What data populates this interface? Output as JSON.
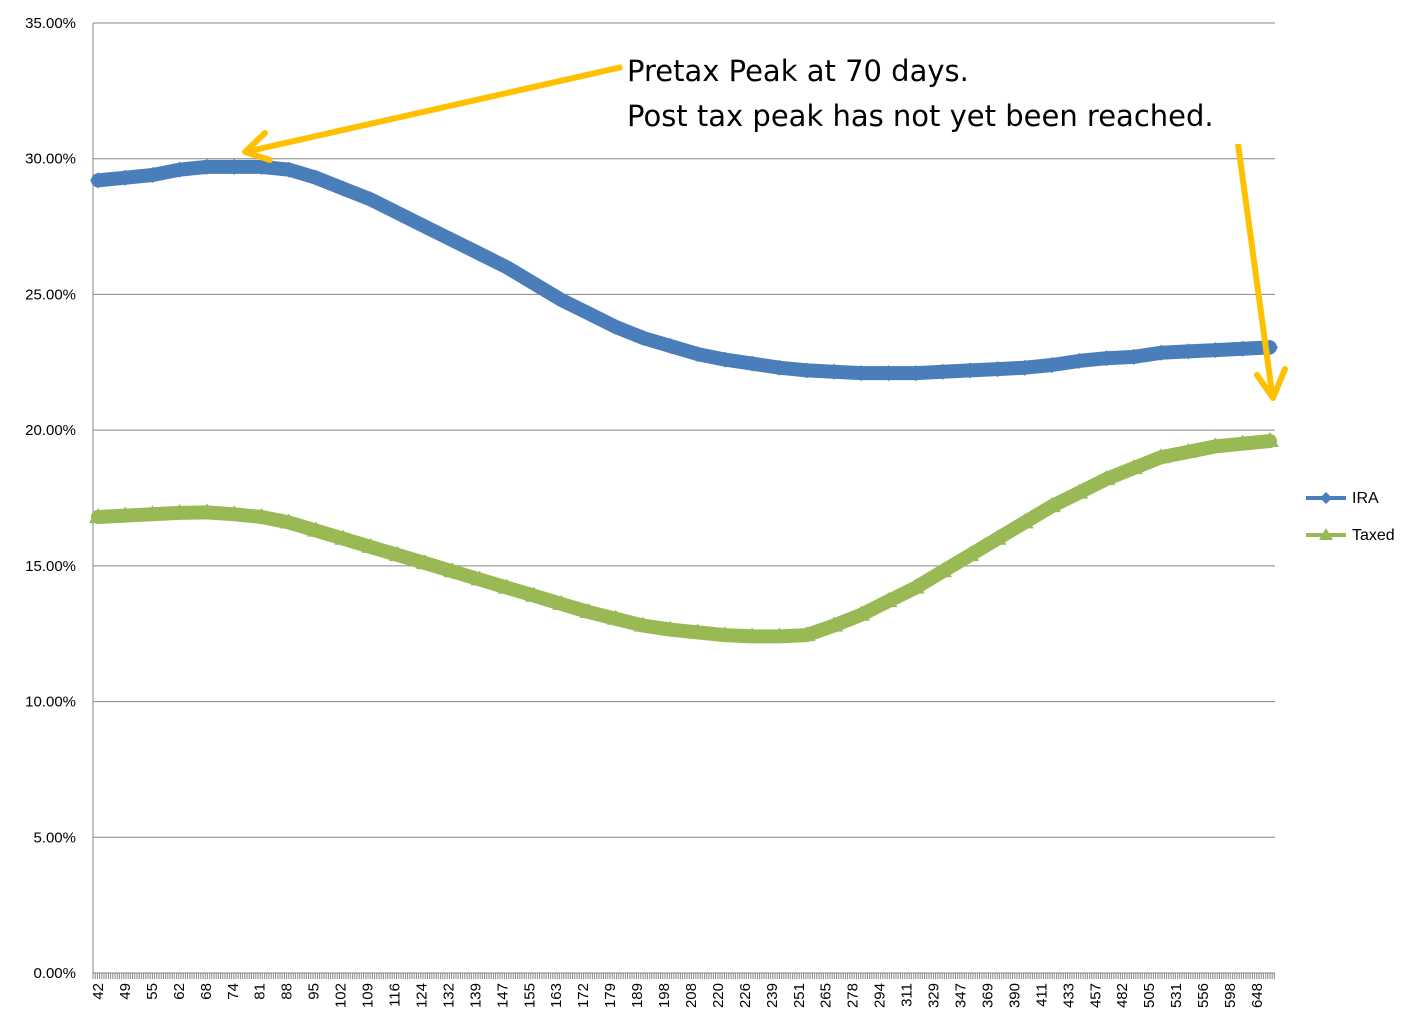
{
  "chart_data": {
    "type": "line",
    "title": "",
    "xlabel": "",
    "ylabel": "",
    "ylim": [
      0,
      0.35
    ],
    "y_ticks": [
      "0.00%",
      "5.00%",
      "10.00%",
      "15.00%",
      "20.00%",
      "25.00%",
      "30.00%",
      "35.00%"
    ],
    "x_ticks": [
      "42",
      "49",
      "55",
      "62",
      "68",
      "74",
      "81",
      "88",
      "95",
      "102",
      "109",
      "116",
      "124",
      "132",
      "139",
      "147",
      "155",
      "163",
      "172",
      "179",
      "189",
      "198",
      "208",
      "220",
      "226",
      "239",
      "251",
      "265",
      "278",
      "294",
      "311",
      "329",
      "347",
      "369",
      "390",
      "411",
      "433",
      "457",
      "482",
      "505",
      "531",
      "556",
      "598",
      "648"
    ],
    "grid": true,
    "legend_position": "right",
    "series": [
      {
        "name": "IRA",
        "color": "#4a7ebb",
        "marker": "diamond",
        "values": [
          0.292,
          0.293,
          0.294,
          0.296,
          0.297,
          0.297,
          0.297,
          0.296,
          0.293,
          0.289,
          0.285,
          0.28,
          0.275,
          0.27,
          0.265,
          0.26,
          0.254,
          0.248,
          0.243,
          0.238,
          0.234,
          0.231,
          0.228,
          0.226,
          0.2245,
          0.223,
          0.222,
          0.2215,
          0.221,
          0.221,
          0.221,
          0.2215,
          0.222,
          0.2225,
          0.223,
          0.224,
          0.2255,
          0.2265,
          0.227,
          0.2285,
          0.229,
          0.2295,
          0.23,
          0.2305
        ]
      },
      {
        "name": "Taxed",
        "color": "#98b954",
        "marker": "triangle",
        "values": [
          0.168,
          0.1685,
          0.169,
          0.1695,
          0.1697,
          0.169,
          0.168,
          0.166,
          0.163,
          0.16,
          0.157,
          0.154,
          0.151,
          0.148,
          0.145,
          0.142,
          0.139,
          0.136,
          0.133,
          0.1305,
          0.128,
          0.1265,
          0.1255,
          0.1245,
          0.124,
          0.124,
          0.1245,
          0.128,
          0.132,
          0.137,
          0.142,
          0.148,
          0.154,
          0.16,
          0.166,
          0.172,
          0.177,
          0.182,
          0.186,
          0.19,
          0.192,
          0.194,
          0.195,
          0.196
        ]
      }
    ],
    "annotations": {
      "line1": "Pretax Peak at 70 days.",
      "line2": "Post tax peak has not yet been reached.",
      "arrow_color": "#ffc000"
    }
  }
}
